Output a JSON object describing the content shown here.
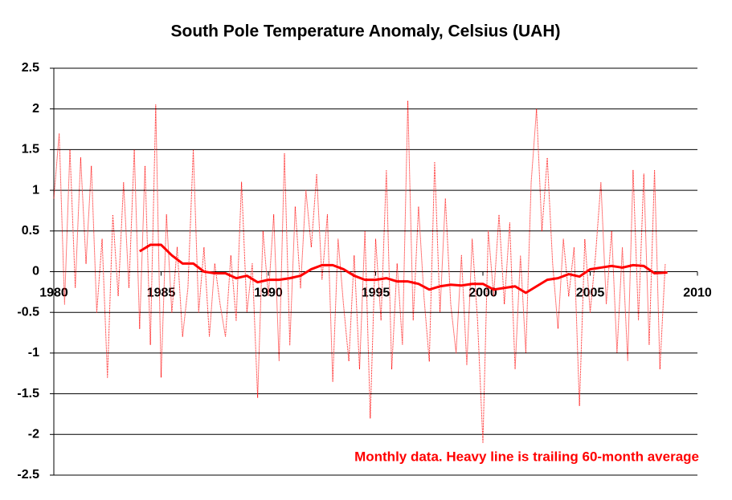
{
  "chart_data": {
    "type": "line",
    "title": "South Pole Temperature Anomaly, Celsius (UAH)",
    "annotation": "Monthly data.  Heavy line is trailing 60-month average",
    "xlim": [
      1980,
      2010
    ],
    "xticks": [
      1980,
      1985,
      1990,
      1995,
      2000,
      2005,
      2010
    ],
    "ylim": [
      -2.5,
      2.5
    ],
    "yticks": [
      -2.5,
      -2,
      -1.5,
      -1,
      -0.5,
      0,
      0.5,
      1,
      1.5,
      2,
      2.5
    ],
    "grid": true,
    "series": [
      {
        "color": "#ff0000",
        "line_width": 1,
        "dashed": true,
        "x": [
          1980,
          1980.25,
          1980.5,
          1980.75,
          1981,
          1981.25,
          1981.5,
          1981.75,
          1982,
          1982.25,
          1982.5,
          1982.75,
          1983,
          1983.25,
          1983.5,
          1983.75,
          1984,
          1984.25,
          1984.5,
          1984.75,
          1985,
          1985.25,
          1985.5,
          1985.75,
          1986,
          1986.25,
          1986.5,
          1986.75,
          1987,
          1987.25,
          1987.5,
          1987.75,
          1988,
          1988.25,
          1988.5,
          1988.75,
          1989,
          1989.25,
          1989.5,
          1989.75,
          1990,
          1990.25,
          1990.5,
          1990.75,
          1991,
          1991.25,
          1991.5,
          1991.75,
          1992,
          1992.25,
          1992.5,
          1992.75,
          1993,
          1993.25,
          1993.5,
          1993.75,
          1994,
          1994.25,
          1994.5,
          1994.75,
          1995,
          1995.25,
          1995.5,
          1995.75,
          1996,
          1996.25,
          1996.5,
          1996.75,
          1997,
          1997.25,
          1997.5,
          1997.75,
          1998,
          1998.25,
          1998.5,
          1998.75,
          1999,
          1999.25,
          1999.5,
          1999.75,
          2000,
          2000.25,
          2000.5,
          2000.75,
          2001,
          2001.25,
          2001.5,
          2001.75,
          2002,
          2002.25,
          2002.5,
          2002.75,
          2003,
          2003.25,
          2003.5,
          2003.75,
          2004,
          2004.25,
          2004.5,
          2004.75,
          2005,
          2005.25,
          2005.5,
          2005.75,
          2006,
          2006.25,
          2006.5,
          2006.75,
          2007,
          2007.25,
          2007.5,
          2007.75,
          2008,
          2008.25,
          2008.5
        ],
        "values": [
          0.9,
          1.7,
          -0.4,
          1.5,
          -0.2,
          1.4,
          0.1,
          1.3,
          -0.5,
          0.4,
          -1.3,
          0.7,
          -0.3,
          1.1,
          -0.2,
          1.5,
          -0.7,
          1.3,
          -0.9,
          2.05,
          -1.3,
          0.7,
          -0.5,
          0.3,
          -0.8,
          -0.2,
          1.5,
          -0.5,
          0.3,
          -0.8,
          0.1,
          -0.4,
          -0.8,
          0.2,
          -0.6,
          1.1,
          -0.5,
          0.1,
          -1.55,
          0.5,
          -0.3,
          0.7,
          -1.1,
          1.45,
          -0.9,
          0.8,
          -0.2,
          1.0,
          0.3,
          1.2,
          -0.1,
          0.7,
          -1.35,
          0.4,
          -0.4,
          -1.1,
          0.2,
          -1.2,
          0.5,
          -1.8,
          0.4,
          -0.6,
          1.25,
          -1.2,
          0.1,
          -0.9,
          2.1,
          -0.6,
          0.8,
          -0.3,
          -1.1,
          1.35,
          -0.5,
          0.9,
          -0.4,
          -1.0,
          0.2,
          -1.15,
          0.4,
          -0.6,
          -2.1,
          0.5,
          -0.3,
          0.7,
          -0.4,
          0.6,
          -1.2,
          0.2,
          -1.0,
          1.1,
          2.0,
          0.5,
          1.4,
          0.1,
          -0.7,
          0.4,
          -0.3,
          0.3,
          -1.65,
          0.4,
          -0.5,
          0.2,
          1.1,
          -0.4,
          0.5,
          -1.0,
          0.3,
          -1.1,
          1.25,
          -0.6,
          1.2,
          -0.9,
          1.25,
          -1.2,
          0.1
        ]
      },
      {
        "color": "#ff0000",
        "line_width": 3,
        "dashed": false,
        "x": [
          1984,
          1984.5,
          1985,
          1985.5,
          1986,
          1986.5,
          1987,
          1987.5,
          1988,
          1988.5,
          1989,
          1989.5,
          1990,
          1990.5,
          1991,
          1991.5,
          1992,
          1992.5,
          1993,
          1993.5,
          1994,
          1994.5,
          1995,
          1995.5,
          1996,
          1996.5,
          1997,
          1997.5,
          1998,
          1998.5,
          1999,
          1999.5,
          2000,
          2000.5,
          2001,
          2001.5,
          2002,
          2002.5,
          2003,
          2003.5,
          2004,
          2004.5,
          2005,
          2005.5,
          2006,
          2006.5,
          2007,
          2007.5,
          2008,
          2008.6
        ],
        "values": [
          0.25,
          0.33,
          0.33,
          0.2,
          0.1,
          0.1,
          0.0,
          -0.02,
          -0.02,
          -0.08,
          -0.05,
          -0.13,
          -0.1,
          -0.1,
          -0.08,
          -0.05,
          0.03,
          0.08,
          0.08,
          0.03,
          -0.05,
          -0.1,
          -0.1,
          -0.08,
          -0.12,
          -0.12,
          -0.15,
          -0.22,
          -0.18,
          -0.16,
          -0.17,
          -0.15,
          -0.15,
          -0.22,
          -0.2,
          -0.18,
          -0.26,
          -0.18,
          -0.1,
          -0.08,
          -0.03,
          -0.06,
          0.03,
          0.05,
          0.07,
          0.05,
          0.08,
          0.07,
          -0.02,
          -0.01
        ]
      }
    ]
  }
}
